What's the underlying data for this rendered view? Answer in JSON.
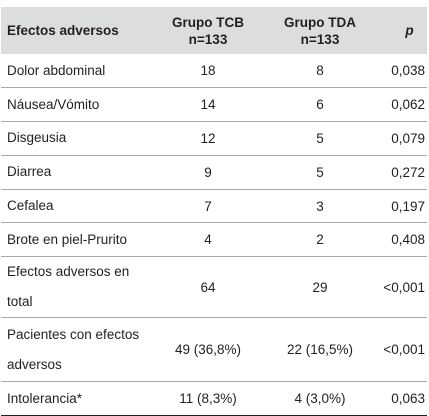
{
  "table": {
    "headers": {
      "effects": "Efectos adversos",
      "tcb_line1": "Grupo TCB",
      "tcb_line2": "n=133",
      "tda_line1": "Grupo TDA",
      "tda_line2": "n=133",
      "p": "p"
    },
    "rows": [
      {
        "label": "Dolor abdominal",
        "tcb": "18",
        "tda": "8",
        "p": "0,038"
      },
      {
        "label": "Náusea/Vómito",
        "tcb": "14",
        "tda": "6",
        "p": "0,062"
      },
      {
        "label": "Disgeusia",
        "tcb": "12",
        "tda": "5",
        "p": "0,079"
      },
      {
        "label": "Diarrea",
        "tcb": "9",
        "tda": "5",
        "p": "0,272"
      },
      {
        "label": "Cefalea",
        "tcb": "7",
        "tda": "3",
        "p": "0,197"
      },
      {
        "label": "Brote en piel-Prurito",
        "tcb": "4",
        "tda": "2",
        "p": "0,408"
      },
      {
        "label": "Efectos adversos en total",
        "tcb": "64",
        "tda": "29",
        "p": "<0,001"
      },
      {
        "label_line1": "Pacientes con efectos",
        "label_line2": "adversos",
        "tcb": "49 (36,8%)",
        "tda": "22 (16,5%)",
        "p": "<0,001"
      },
      {
        "label": "Intolerancia*",
        "tcb": "11 (8,3%)",
        "tda": "4 (3,0%)",
        "p": "0,063"
      }
    ]
  }
}
